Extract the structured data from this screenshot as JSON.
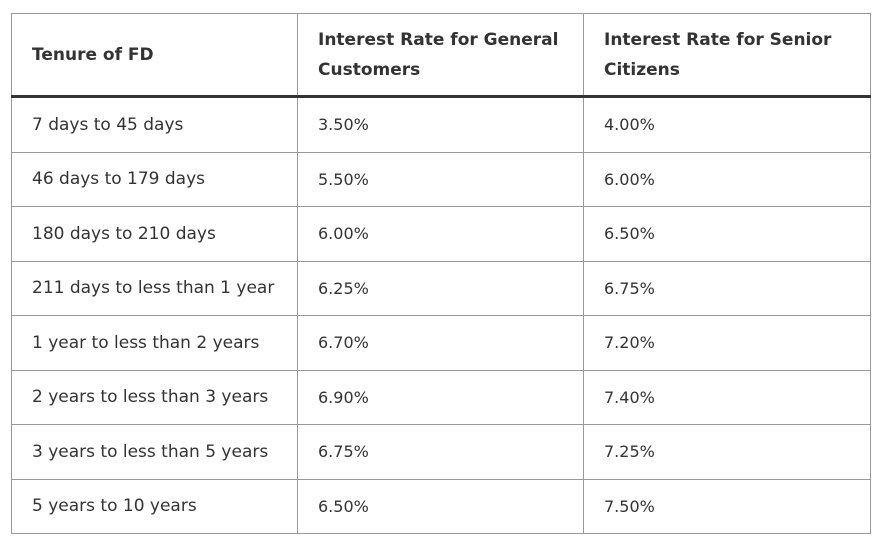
{
  "table": {
    "headers": [
      "Tenure of FD",
      "Interest Rate for General Customers",
      "Interest Rate for Senior Citizens"
    ],
    "rows": [
      {
        "tenure": "7 days to 45 days",
        "general": "3.50%",
        "senior": "4.00%"
      },
      {
        "tenure": "46 days to 179 days",
        "general": "5.50%",
        "senior": "6.00%"
      },
      {
        "tenure": "180 days to 210 days",
        "general": "6.00%",
        "senior": "6.50%"
      },
      {
        "tenure": "211 days to less than 1 year",
        "general": "6.25%",
        "senior": "6.75%"
      },
      {
        "tenure": "1 year to less than 2 years",
        "general": "6.70%",
        "senior": "7.20%"
      },
      {
        "tenure": "2 years to less than 3 years",
        "general": "6.90%",
        "senior": "7.40%"
      },
      {
        "tenure": "3 years to less than 5 years",
        "general": "6.75%",
        "senior": "7.25%"
      },
      {
        "tenure": "5 years to 10 years",
        "general": "6.50%",
        "senior": "7.50%"
      }
    ]
  }
}
